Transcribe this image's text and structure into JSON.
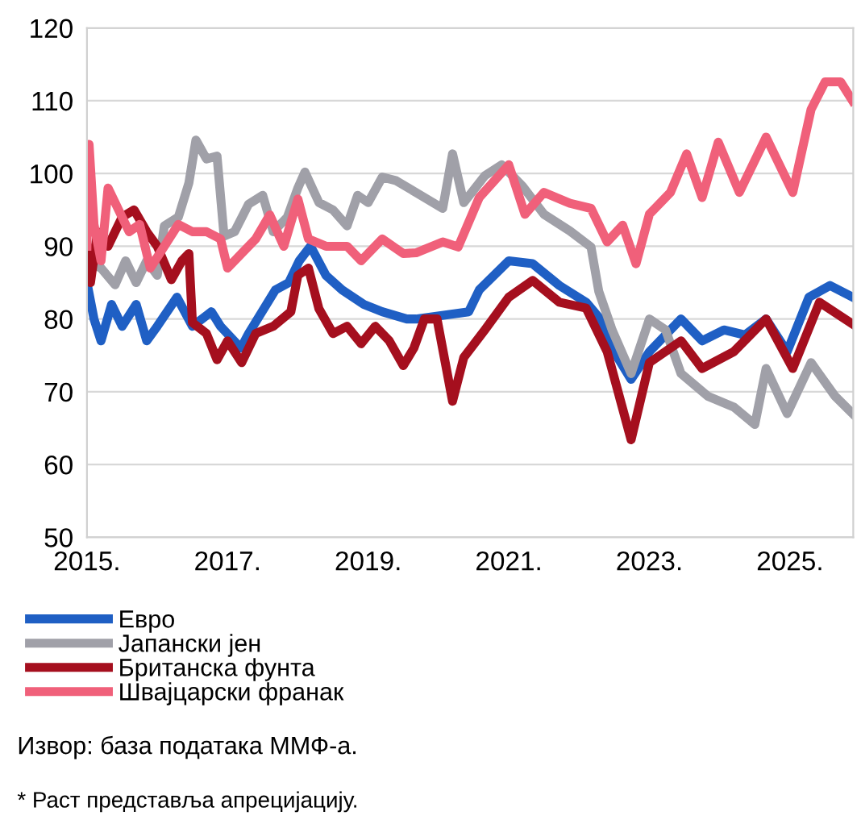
{
  "chart_data": {
    "type": "line",
    "xlim": [
      2015,
      2025.9
    ],
    "xticks": [
      {
        "value": 2015,
        "label": "2015."
      },
      {
        "value": 2017,
        "label": "2017."
      },
      {
        "value": 2019,
        "label": "2019."
      },
      {
        "value": 2021,
        "label": "2021."
      },
      {
        "value": 2023,
        "label": "2023."
      },
      {
        "value": 2025,
        "label": "2025."
      }
    ],
    "ylim": [
      50,
      120
    ],
    "yticks": [
      50,
      60,
      70,
      80,
      90,
      100,
      110,
      120
    ],
    "grid": "y",
    "legend": "bottom",
    "line_style": "solid",
    "marker": "none",
    "series": [
      {
        "name": "Евро",
        "color": "#1f5fc4",
        "x": [
          2015.0,
          2015.1,
          2015.2,
          2015.35,
          2015.5,
          2015.7,
          2015.85,
          2016.0,
          2016.28,
          2016.5,
          2016.77,
          2016.9,
          2017.19,
          2017.3,
          2017.68,
          2017.87,
          2018.02,
          2018.18,
          2018.4,
          2018.63,
          2018.94,
          2019.2,
          2019.55,
          2019.68,
          2020.43,
          2020.58,
          2021.0,
          2021.34,
          2021.72,
          2022.1,
          2022.3,
          2022.55,
          2022.74,
          2023.0,
          2023.45,
          2023.75,
          2024.06,
          2024.36,
          2024.66,
          2024.96,
          2025.27,
          2025.57,
          2025.89
        ],
        "values": [
          85,
          80,
          77,
          82,
          79,
          82,
          77,
          79,
          83,
          79,
          81,
          79,
          76,
          78,
          84,
          85,
          88,
          90,
          86,
          84,
          82,
          81,
          80,
          80,
          81,
          84,
          88,
          87.6,
          84.6,
          82.3,
          80,
          74.7,
          71.7,
          75.5,
          80,
          77,
          78.5,
          77.8,
          80,
          75.5,
          83,
          84.6,
          83
        ]
      },
      {
        "name": "Јапански јен",
        "color": "#a0a0a8",
        "x": [
          2015.0,
          2015.2,
          2015.4,
          2015.55,
          2015.7,
          2015.85,
          2016.0,
          2016.1,
          2016.3,
          2016.45,
          2016.55,
          2016.7,
          2016.85,
          2016.95,
          2017.1,
          2017.3,
          2017.5,
          2017.65,
          2017.85,
          2018.0,
          2018.1,
          2018.3,
          2018.5,
          2018.7,
          2018.85,
          2019.0,
          2019.2,
          2019.4,
          2019.68,
          2020.06,
          2020.2,
          2020.36,
          2020.66,
          2020.9,
          2021.2,
          2021.5,
          2021.87,
          2022.17,
          2022.28,
          2022.47,
          2022.74,
          2023.0,
          2023.23,
          2023.45,
          2023.83,
          2024.2,
          2024.5,
          2024.66,
          2024.96,
          2025.3,
          2025.64,
          2025.89
        ],
        "values": [
          88,
          87,
          84.7,
          88,
          85,
          88,
          86,
          92.8,
          94,
          98.7,
          104.6,
          102,
          102.4,
          91.4,
          92,
          95.8,
          97,
          92,
          94,
          98,
          100.2,
          96,
          95,
          92.8,
          97,
          96,
          99.5,
          99,
          97.4,
          95.2,
          102.7,
          96,
          99.7,
          101.2,
          98.2,
          94.4,
          92.1,
          89.9,
          83.8,
          78.5,
          72.5,
          80,
          78.5,
          72.5,
          69.4,
          67.9,
          65.5,
          73.2,
          67,
          74,
          69.4,
          67
        ]
      },
      {
        "name": "Британска фунта",
        "color": "#a50f1e",
        "x": [
          2015.0,
          2015.05,
          2015.15,
          2015.3,
          2015.5,
          2015.67,
          2015.85,
          2016.0,
          2016.2,
          2016.35,
          2016.45,
          2016.5,
          2016.7,
          2016.85,
          2017.0,
          2017.2,
          2017.4,
          2017.65,
          2017.9,
          2018.0,
          2018.15,
          2018.3,
          2018.5,
          2018.7,
          2018.9,
          2019.1,
          2019.3,
          2019.5,
          2019.65,
          2019.8,
          2019.98,
          2020.2,
          2020.36,
          2020.66,
          2021.0,
          2021.34,
          2021.72,
          2022.1,
          2022.4,
          2022.74,
          2023.0,
          2023.45,
          2023.75,
          2024.2,
          2024.66,
          2025.04,
          2025.42,
          2025.89
        ],
        "values": [
          90,
          85,
          92,
          90,
          94,
          95,
          92,
          90,
          85.4,
          88,
          89,
          79.5,
          78,
          74.4,
          77,
          74,
          78,
          79,
          81,
          86,
          87,
          81.4,
          78,
          79,
          76.6,
          79,
          77,
          73.6,
          76,
          80,
          80,
          68.7,
          74.7,
          78.5,
          83,
          85.3,
          82.3,
          81.5,
          75.5,
          63.4,
          74,
          77,
          73.2,
          75.5,
          80,
          73.2,
          82.3,
          79.3
        ]
      },
      {
        "name": "Швајцарски франак",
        "color": "#f0607a",
        "x": [
          2015.0,
          2015.03,
          2015.1,
          2015.2,
          2015.3,
          2015.45,
          2015.6,
          2015.75,
          2015.9,
          2016.1,
          2016.3,
          2016.5,
          2016.7,
          2016.9,
          2017.0,
          2017.2,
          2017.4,
          2017.6,
          2017.8,
          2018.0,
          2018.15,
          2018.4,
          2018.7,
          2018.9,
          2019.2,
          2019.5,
          2019.68,
          2020.06,
          2020.28,
          2020.58,
          2021.0,
          2021.23,
          2021.5,
          2021.87,
          2022.17,
          2022.4,
          2022.62,
          2022.81,
          2023.0,
          2023.3,
          2023.53,
          2023.75,
          2023.98,
          2024.28,
          2024.66,
          2025.04,
          2025.3,
          2025.5,
          2025.72,
          2025.89
        ],
        "values": [
          90,
          104,
          93,
          88,
          98,
          95,
          92,
          93,
          87,
          90,
          93,
          92,
          92,
          91,
          87,
          89,
          91,
          94.3,
          90,
          96.5,
          91,
          90,
          90,
          88,
          91,
          89,
          89.1,
          90.6,
          89.9,
          96.7,
          101.2,
          94.4,
          97.4,
          95.9,
          95.2,
          90.6,
          92.9,
          87.6,
          94.4,
          97.4,
          102.7,
          96.7,
          104.3,
          97.4,
          105,
          97.4,
          108.8,
          112.6,
          112.6,
          110
        ]
      }
    ],
    "annotations": [
      "Извор: база података ММФ-а.",
      "* Раст представља апрецијацију."
    ]
  }
}
